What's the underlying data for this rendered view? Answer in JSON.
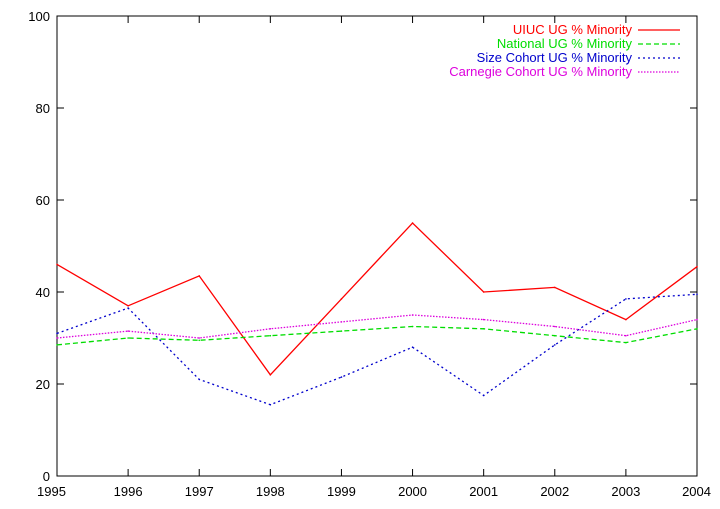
{
  "chart_data": {
    "type": "line",
    "title": "",
    "xlabel": "",
    "ylabel": "",
    "x": [
      "1995",
      "1996",
      "1997",
      "1998",
      "1999",
      "2000",
      "2001",
      "2002",
      "2003",
      "2004"
    ],
    "xlim": [
      1995,
      2004
    ],
    "ylim": [
      0,
      100
    ],
    "yticks": [
      "0",
      "20",
      "40",
      "60",
      "80",
      "100"
    ],
    "grid": false,
    "legend_position": "top-right",
    "series": [
      {
        "name": "UIUC UG % Minority",
        "color": "#ff0000",
        "dash": "solid",
        "values": [
          46,
          37,
          43.5,
          22,
          38.5,
          55,
          40,
          41,
          34,
          45.5
        ]
      },
      {
        "name": "National UG % Minority",
        "color": "#00dd00",
        "dash": "dashed",
        "values": [
          28.5,
          30,
          29.5,
          30.5,
          31.5,
          32.5,
          32,
          30.5,
          29,
          32
        ]
      },
      {
        "name": "Size Cohort UG % Minority",
        "color": "#0000cc",
        "dash": "dotted",
        "values": [
          31,
          36.5,
          21,
          15.5,
          21.5,
          28,
          17.5,
          28.5,
          38.5,
          39.5
        ]
      },
      {
        "name": "Carnegie Cohort UG % Minority",
        "color": "#dd00dd",
        "dash": "dense-dotted",
        "values": [
          30,
          31.5,
          30,
          32,
          33.5,
          35,
          34,
          32.5,
          30.5,
          34
        ]
      }
    ]
  }
}
